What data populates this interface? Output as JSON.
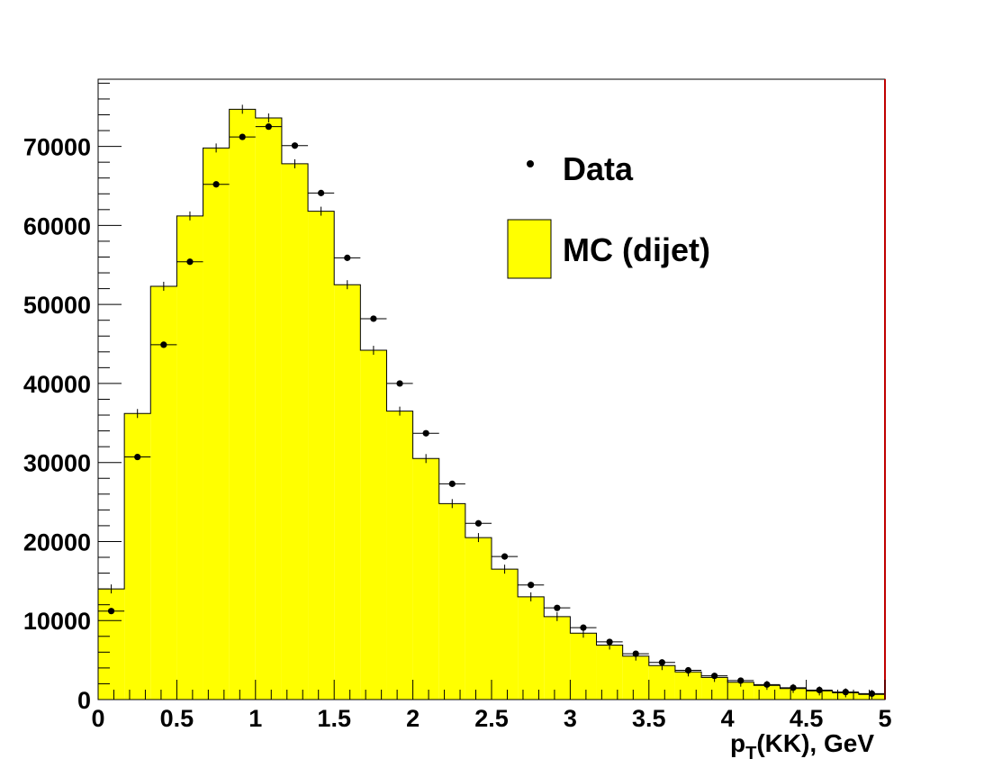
{
  "chart_data": {
    "type": "bar",
    "title": "",
    "xlabel": {
      "main": "p",
      "sub": "T",
      "rest": "(KK), GeV"
    },
    "ylabel": "",
    "xlim": [
      0,
      5
    ],
    "ylim": [
      0,
      78500
    ],
    "x_ticks": [
      "0",
      "0.5",
      "1",
      "1.5",
      "2",
      "2.5",
      "3",
      "3.5",
      "4",
      "4.5",
      "5"
    ],
    "y_ticks": [
      "0",
      "10000",
      "20000",
      "30000",
      "40000",
      "50000",
      "60000",
      "70000"
    ],
    "bin_width": 0.1666667,
    "grid": false,
    "legend_position": "top-right",
    "colors": {
      "mc_fill": "#ffff00",
      "data_marker": "#000000",
      "right_axis": "#c00000"
    },
    "series": [
      {
        "name": "MC (dijet)",
        "kind": "histogram",
        "values": [
          14000,
          36200,
          52300,
          61200,
          69800,
          74700,
          73600,
          67800,
          61800,
          52500,
          44200,
          36500,
          30500,
          24800,
          20500,
          16500,
          13000,
          10500,
          8400,
          6900,
          5500,
          4300,
          3500,
          2800,
          2200,
          1800,
          1400,
          1100,
          850,
          650
        ]
      },
      {
        "name": "Data",
        "kind": "points",
        "values": [
          11200,
          30700,
          44900,
          55400,
          65200,
          71200,
          72500,
          70100,
          64100,
          55900,
          48200,
          40000,
          33700,
          27300,
          22300,
          18100,
          14500,
          11600,
          9100,
          7300,
          5800,
          4700,
          3700,
          3000,
          2400,
          1900,
          1500,
          1200,
          950,
          750
        ]
      }
    ]
  }
}
